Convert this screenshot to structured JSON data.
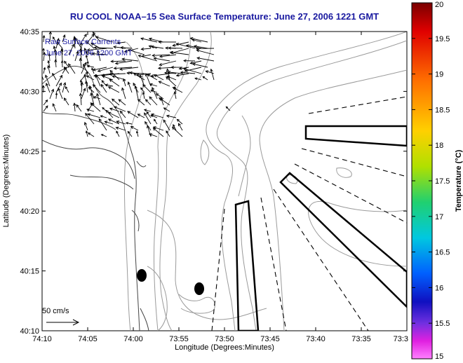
{
  "title": "RU COOL  NOAA–15  Sea Surface Temperature:  June 27, 2006 1221 GMT",
  "legend": {
    "line1": "Raw Surface Currents",
    "line2": "June 27, 2006 1200 GMT"
  },
  "axes": {
    "xlabel": "Longitude (Degrees:Minutes)",
    "ylabel": "Latitude (Degrees:Minutes)",
    "x_ticks": [
      "74:10",
      "74:05",
      "74:00",
      "73:55",
      "73:50",
      "73:45",
      "73:40",
      "73:35",
      "73:3"
    ],
    "y_ticks": [
      "40:35",
      "40:30",
      "40:25",
      "40:20",
      "40:15",
      "40:10"
    ]
  },
  "scale_arrow": {
    "label": "50 cm/s"
  },
  "colorbar": {
    "label": "Temperature (°C)",
    "ticks": [
      "20",
      "19.5",
      "19",
      "18.5",
      "18",
      "17.5",
      "17",
      "16.5",
      "16",
      "15.5",
      "15"
    ]
  },
  "colors": {
    "title": "#1a1aa0",
    "contour": "#999999",
    "coast": "#444444",
    "vectors": "#000000"
  }
}
